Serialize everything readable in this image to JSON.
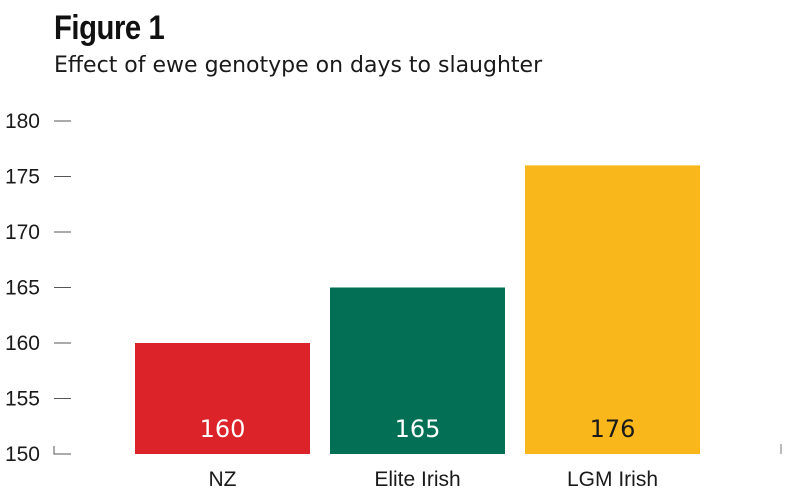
{
  "header": {
    "title": "Figure 1",
    "subtitle": "Effect of ewe genotype on days to slaughter"
  },
  "chart_data": {
    "type": "bar",
    "title": "Figure 1",
    "subtitle": "Effect of ewe genotype on days to slaughter",
    "xlabel": "",
    "ylabel": "",
    "categories": [
      "NZ",
      "Elite Irish",
      "LGM Irish"
    ],
    "values": [
      160,
      165,
      176
    ],
    "value_labels": [
      "160",
      "165",
      "176"
    ],
    "bar_colors": [
      "#dc2329",
      "#036f55",
      "#f9b71c"
    ],
    "value_label_colors": [
      "#ffffff",
      "#ffffff",
      "#1a1a1a"
    ],
    "ylim": [
      150,
      180
    ],
    "yticks": [
      150,
      155,
      160,
      165,
      170,
      175,
      180
    ],
    "ytick_labels": [
      "150",
      "155",
      "160",
      "165",
      "170",
      "175",
      "180"
    ],
    "grid": false,
    "legend": "none"
  }
}
